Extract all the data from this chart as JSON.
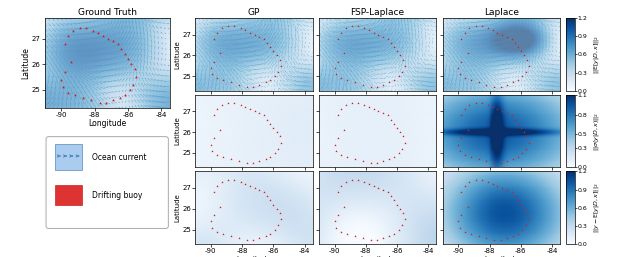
{
  "title_gt": "Ground Truth",
  "title_gp": "GP",
  "title_fsp": "FSP-Laplace",
  "title_lap": "Laplace",
  "xlabel": "Longitude",
  "ylabel": "Latitude",
  "lon_range": [
    -91,
    -83.5
  ],
  "lat_range": [
    24.3,
    27.8
  ],
  "lon_ticks": [
    -90,
    -88,
    -86,
    -84
  ],
  "lat_ticks": [
    25,
    26,
    27
  ],
  "colorbar_ticks_row1": [
    0.0,
    0.3,
    0.6,
    0.9,
    1.2
  ],
  "colorbar_ticks_row2": [
    0.0,
    0.3,
    0.5,
    0.8,
    1.1
  ],
  "colorbar_ticks_row3": [
    0.0,
    0.3,
    0.6,
    0.9,
    1.2
  ],
  "colorbar_label_row1": "||E[y|D,x]||_2",
  "colorbar_label_row2": "||s(y|D,x)||_2",
  "colorbar_label_row3": "||y - E[y|D,x]||_2",
  "legend_ocean": "Ocean current",
  "legend_buoy": "Drifting buoy",
  "background_color": "#ffffff",
  "quiver_color": "#5ba3c9",
  "buoy_color": "#cc2222",
  "cmap_name": "Blues",
  "seed": 42,
  "buoy_lons": [
    -89.8,
    -89.6,
    -89.3,
    -88.9,
    -88.5,
    -88.1,
    -87.8,
    -87.5,
    -87.2,
    -86.9,
    -86.6,
    -86.4,
    -86.2,
    -86.0,
    -85.8,
    -85.6,
    -85.5,
    -85.7,
    -85.9,
    -86.2,
    -86.5,
    -86.9,
    -87.3,
    -87.7,
    -88.2,
    -88.7,
    -89.2,
    -89.6,
    -89.9,
    -90.0,
    -89.8,
    -89.4
  ],
  "buoy_lats": [
    26.8,
    27.1,
    27.3,
    27.4,
    27.4,
    27.3,
    27.2,
    27.1,
    27.0,
    26.9,
    26.8,
    26.6,
    26.4,
    26.2,
    26.0,
    25.8,
    25.5,
    25.2,
    25.0,
    24.8,
    24.7,
    24.6,
    24.5,
    24.5,
    24.6,
    24.7,
    24.8,
    24.9,
    25.1,
    25.4,
    25.7,
    26.1
  ]
}
